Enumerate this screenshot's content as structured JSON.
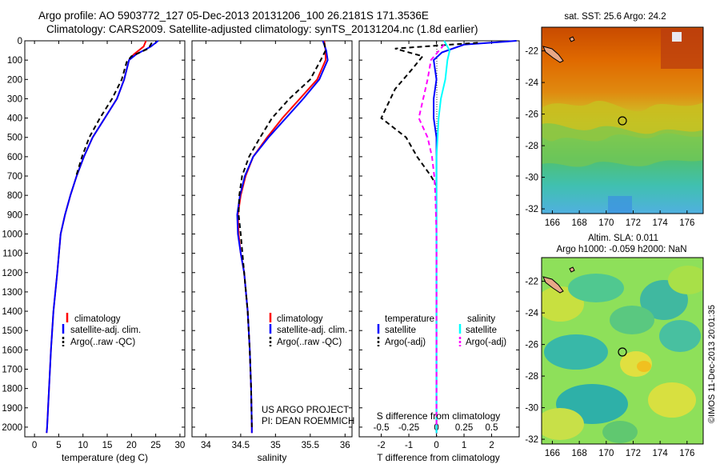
{
  "header": {
    "line1": "Argo profile: AO 5903772_127 05-Dec-2013 20131206_100 26.2181S 171.3536E",
    "line2": "Climatology: CARS2009. Satellite-adjusted climatology: synTS_20131204.nc (1.8d earlier)"
  },
  "sst_map": {
    "title": "sat. SST: 25.6 Argo: 24.2",
    "x_ticks": [
      "166",
      "168",
      "170",
      "172",
      "174",
      "176"
    ],
    "y_ticks": [
      "-22",
      "-24",
      "-26",
      "-28",
      "-30",
      "-32"
    ],
    "marker": {
      "lon": 171.35,
      "lat": -26.22
    }
  },
  "sla_map": {
    "title_line1": "Altim. SLA: 0.011",
    "title_line2": "Argo h1000: -0.059 h2000: NaN",
    "x_ticks": [
      "166",
      "168",
      "170",
      "172",
      "174",
      "176"
    ],
    "y_ticks": [
      "-22",
      "-24",
      "-26",
      "-28",
      "-30",
      "-32"
    ],
    "marker": {
      "lon": 171.35,
      "lat": -26.22
    }
  },
  "side_label": "©IMOS 11-Dec-2013 20:01:35",
  "project": {
    "line1": "US ARGO PROJECT",
    "line2": "PI: DEAN ROEMMICH"
  },
  "colors": {
    "climatology": "#ff0000",
    "satellite": "#0000ff",
    "argo": "#000000",
    "sat_salinity": "#00ffff",
    "argo_salinity": "#ff00ff"
  },
  "chart_data": [
    {
      "type": "line",
      "xlabel": "temperature (deg C)",
      "xlim": [
        -2,
        31
      ],
      "ylim": [
        2050,
        0
      ],
      "x_ticks": [
        "0",
        "5",
        "10",
        "15",
        "20",
        "25",
        "30"
      ],
      "y_ticks": [
        "0",
        "100",
        "200",
        "300",
        "400",
        "500",
        "600",
        "700",
        "800",
        "900",
        "1000",
        "1100",
        "1200",
        "1300",
        "1400",
        "1500",
        "1600",
        "1700",
        "1800",
        "1900",
        "2000"
      ],
      "legend": [
        "climatology",
        "satellite-adj. clim.",
        "Argo(..raw -QC)"
      ],
      "series": [
        {
          "name": "climatology",
          "color": "#ff0000",
          "dash": "",
          "points": [
            [
              23,
              0
            ],
            [
              22.5,
              30
            ],
            [
              20.5,
              70
            ],
            [
              19.5,
              100
            ],
            [
              18.5,
              200
            ],
            [
              17,
              300
            ],
            [
              14.5,
              400
            ],
            [
              12,
              500
            ],
            [
              10.2,
              600
            ],
            [
              8.7,
              700
            ],
            [
              7.4,
              800
            ],
            [
              6.3,
              900
            ],
            [
              5.4,
              1000
            ],
            [
              4.7,
              1200
            ],
            [
              3.9,
              1400
            ],
            [
              3.4,
              1600
            ],
            [
              3,
              1800
            ],
            [
              2.6,
              2000
            ],
            [
              2.5,
              2030
            ]
          ]
        },
        {
          "name": "satellite-adj. clim.",
          "color": "#0000ff",
          "dash": "",
          "points": [
            [
              25.5,
              0
            ],
            [
              24,
              30
            ],
            [
              21,
              70
            ],
            [
              19.5,
              100
            ],
            [
              18.5,
              200
            ],
            [
              17,
              300
            ],
            [
              14.5,
              400
            ],
            [
              12,
              500
            ],
            [
              10.2,
              600
            ],
            [
              8.7,
              700
            ],
            [
              7.4,
              800
            ],
            [
              6.3,
              900
            ],
            [
              5.4,
              1000
            ],
            [
              4.7,
              1200
            ],
            [
              3.9,
              1400
            ],
            [
              3.4,
              1600
            ],
            [
              3,
              1800
            ],
            [
              2.6,
              2000
            ],
            [
              2.5,
              2030
            ]
          ]
        },
        {
          "name": "Argo(..raw -QC)",
          "color": "#000000",
          "dash": "6,4",
          "points": [
            [
              24.2,
              10
            ],
            [
              23.5,
              40
            ],
            [
              20,
              80
            ],
            [
              19,
              110
            ],
            [
              18,
              200
            ],
            [
              16,
              300
            ],
            [
              13.5,
              400
            ],
            [
              11.3,
              500
            ],
            [
              9.8,
              600
            ],
            [
              8.6,
              700
            ]
          ]
        }
      ]
    },
    {
      "type": "line",
      "xlabel": "salinity",
      "xlim": [
        33.8,
        36.1
      ],
      "ylim": [
        2050,
        0
      ],
      "x_ticks": [
        "34",
        "34.5",
        "35",
        "35.5",
        "36"
      ],
      "legend": [
        "climatology",
        "satellite-adj. clim.",
        "Argo(..raw -QC)"
      ],
      "series": [
        {
          "name": "climatology",
          "color": "#ff0000",
          "dash": "",
          "points": [
            [
              35.7,
              0
            ],
            [
              35.72,
              50
            ],
            [
              35.72,
              100
            ],
            [
              35.6,
              200
            ],
            [
              35.35,
              300
            ],
            [
              35.1,
              400
            ],
            [
              34.88,
              500
            ],
            [
              34.68,
              600
            ],
            [
              34.57,
              700
            ],
            [
              34.5,
              800
            ],
            [
              34.46,
              900
            ],
            [
              34.47,
              1000
            ],
            [
              34.5,
              1100
            ],
            [
              34.55,
              1200
            ],
            [
              34.6,
              1400
            ],
            [
              34.63,
              1600
            ],
            [
              34.65,
              1800
            ],
            [
              34.66,
              2000
            ],
            [
              34.66,
              2030
            ]
          ]
        },
        {
          "name": "satellite-adj. clim.",
          "color": "#0000ff",
          "dash": "",
          "points": [
            [
              35.68,
              0
            ],
            [
              35.73,
              50
            ],
            [
              35.75,
              100
            ],
            [
              35.63,
              200
            ],
            [
              35.4,
              300
            ],
            [
              35.15,
              400
            ],
            [
              34.9,
              500
            ],
            [
              34.68,
              600
            ],
            [
              34.56,
              700
            ],
            [
              34.49,
              800
            ],
            [
              34.45,
              900
            ],
            [
              34.46,
              1000
            ],
            [
              34.5,
              1100
            ],
            [
              34.55,
              1200
            ],
            [
              34.6,
              1400
            ],
            [
              34.63,
              1600
            ],
            [
              34.65,
              1800
            ],
            [
              34.66,
              2000
            ],
            [
              34.66,
              2030
            ]
          ]
        },
        {
          "name": "Argo(..raw -QC)",
          "color": "#000000",
          "dash": "6,4",
          "points": [
            [
              35.7,
              10
            ],
            [
              35.72,
              50
            ],
            [
              35.65,
              100
            ],
            [
              35.5,
              200
            ],
            [
              35.2,
              300
            ],
            [
              34.95,
              400
            ],
            [
              34.78,
              500
            ],
            [
              34.62,
              600
            ],
            [
              34.52,
              700
            ],
            [
              34.48,
              800
            ],
            [
              34.47,
              900
            ],
            [
              34.5,
              1000
            ],
            [
              34.55,
              1200
            ],
            [
              34.6,
              1400
            ],
            [
              34.63,
              1600
            ],
            [
              34.65,
              1800
            ],
            [
              34.66,
              2000
            ]
          ]
        }
      ]
    },
    {
      "type": "line",
      "xlabel": "T difference from climatology",
      "xlabel_top": "S difference from climatology",
      "xlim": [
        -2.8,
        3
      ],
      "ylim": [
        2050,
        0
      ],
      "x_ticks": [
        "-2",
        "-1",
        "0",
        "1",
        "2"
      ],
      "x_ticks_top": [
        "-0.5",
        "-0.25",
        "0",
        "0.25",
        "0.5"
      ],
      "legend_t": {
        "header": "temperature",
        "items": [
          "satellite",
          "Argo(-adj)"
        ]
      },
      "legend_s": {
        "header": "salinity",
        "items": [
          "satellite",
          "Argo(-adj)"
        ]
      },
      "series": [
        {
          "name": "T satellite",
          "color": "#0000ff",
          "dash": "",
          "points": [
            [
              2.9,
              0
            ],
            [
              1,
              20
            ],
            [
              0.2,
              60
            ],
            [
              -0.1,
              100
            ],
            [
              0,
              200
            ],
            [
              -0.1,
              300
            ],
            [
              -0.1,
              400
            ],
            [
              0,
              500
            ],
            [
              0,
              700
            ],
            [
              0,
              1000
            ],
            [
              0,
              1500
            ],
            [
              0,
              2030
            ]
          ]
        },
        {
          "name": "T Argo(-adj)",
          "color": "#000000",
          "dash": "6,4",
          "points": [
            [
              1.5,
              10
            ],
            [
              -1.5,
              40
            ],
            [
              -0.5,
              80
            ],
            [
              -0.9,
              150
            ],
            [
              -1.5,
              250
            ],
            [
              -2,
              400
            ],
            [
              -1.1,
              500
            ],
            [
              -0.7,
              600
            ],
            [
              -0.2,
              700
            ],
            [
              0,
              750
            ]
          ]
        },
        {
          "name": "S satellite",
          "color": "#00ffff",
          "dash": "",
          "points": [
            [
              0.07,
              0
            ],
            [
              0.12,
              50
            ],
            [
              0.1,
              100
            ],
            [
              0.08,
              200
            ],
            [
              0.04,
              300
            ],
            [
              0.02,
              400
            ],
            [
              0,
              600
            ],
            [
              0,
              1000
            ],
            [
              0,
              1500
            ],
            [
              0,
              2030
            ]
          ]
        },
        {
          "name": "S Argo(-adj)",
          "color": "#ff00ff",
          "dash": "6,4",
          "points": [
            [
              0.07,
              20
            ],
            [
              -0.05,
              100
            ],
            [
              -0.08,
              200
            ],
            [
              -0.16,
              400
            ],
            [
              -0.08,
              500
            ],
            [
              -0.04,
              600
            ],
            [
              -0.02,
              700
            ],
            [
              -0.01,
              800
            ],
            [
              0,
              1000
            ],
            [
              0,
              1400
            ],
            [
              0,
              2000
            ]
          ]
        }
      ]
    }
  ]
}
